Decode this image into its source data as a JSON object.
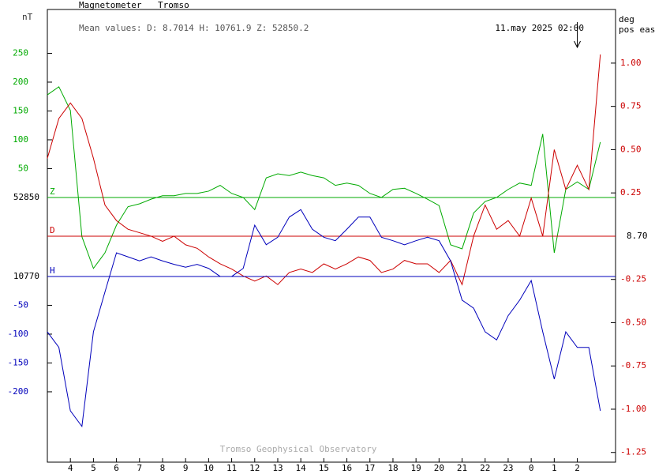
{
  "chart_data": {
    "type": "line",
    "title": "Magnetometer",
    "station": "Tromso",
    "mean_values": "Mean values:  D: 8.7014   H: 10761.9   Z: 52850.2",
    "y_label": "nT",
    "y2_label": [
      "deg",
      "pos east"
    ],
    "annotation": {
      "text": "11.may 2025 02:00",
      "x": 26
    },
    "footer": "Tromso Geophysical Observatory",
    "xlim": [
      3,
      27.66
    ],
    "xticks": [
      4,
      5,
      6,
      7,
      8,
      9,
      10,
      11,
      12,
      13,
      14,
      15,
      16,
      17,
      18,
      19,
      20,
      21,
      22,
      23,
      {
        "value": 24,
        "label": "0"
      },
      {
        "value": 25,
        "label": "1"
      },
      {
        "value": 26,
        "label": "2"
      }
    ],
    "ylim": [
      -459,
      326
    ],
    "yticks": [
      50,
      100,
      150,
      200,
      250
    ],
    "y2lim": [
      -1.306,
      1.31
    ],
    "y2ticks": [
      {
        "value": 1,
        "label": "1.00"
      },
      0.75,
      {
        "value": 0.5,
        "label": "0.50"
      },
      0.25,
      -0.25,
      {
        "value": -0.5,
        "label": "-0.50"
      },
      -0.75,
      {
        "value": -1,
        "label": "-1.00"
      },
      -1.25
    ],
    "y3lim": [
      -322,
      463
    ],
    "y3ticks": [
      -50,
      -100,
      -150,
      -200
    ],
    "x": [
      3,
      3.5,
      4,
      4.5,
      5,
      5.5,
      6,
      6.5,
      7,
      7.5,
      8,
      8.5,
      9,
      9.5,
      10,
      10.5,
      11,
      11.5,
      12,
      12.5,
      13,
      13.5,
      14,
      14.5,
      15,
      15.5,
      16,
      16.5,
      17,
      17.5,
      18,
      18.5,
      19,
      19.5,
      20,
      20.5,
      21,
      21.5,
      22,
      22.5,
      23,
      23.5,
      24,
      24.5,
      25,
      25.5,
      26,
      26.5,
      27
    ],
    "series": [
      {
        "name": "Z",
        "baseline_label": "52850",
        "color": "#00aa00",
        "axis": "y",
        "values": [
          178,
          192,
          151,
          -68,
          -123,
          -96,
          -48,
          -16,
          -11,
          -3,
          3,
          3,
          7,
          7,
          11,
          21,
          7,
          0,
          -21,
          34,
          41,
          38,
          44,
          38,
          34,
          21,
          25,
          21,
          7,
          0,
          14,
          16,
          7,
          -3,
          -14,
          -82,
          -89,
          -27,
          -7,
          0,
          14,
          25,
          21,
          110,
          -96,
          14,
          27,
          14,
          96
        ]
      },
      {
        "name": "D",
        "baseline_label": "8.70",
        "color": "#cc0000",
        "axis": "y2",
        "values": [
          0.45,
          0.68,
          0.77,
          0.68,
          0.45,
          0.18,
          0.09,
          0.04,
          0.02,
          0.0,
          -0.03,
          0.0,
          -0.05,
          -0.07,
          -0.12,
          -0.16,
          -0.19,
          -0.23,
          -0.26,
          -0.23,
          -0.28,
          -0.21,
          -0.19,
          -0.21,
          -0.16,
          -0.19,
          -0.16,
          -0.12,
          -0.14,
          -0.21,
          -0.19,
          -0.14,
          -0.16,
          -0.16,
          -0.21,
          -0.14,
          -0.28,
          0.0,
          0.18,
          0.04,
          0.09,
          0.0,
          0.22,
          0.0,
          0.5,
          0.27,
          0.41,
          0.27,
          1.05
        ]
      },
      {
        "name": "H",
        "baseline_label": "10770",
        "color": "#0000bb",
        "axis": "y3",
        "values": [
          -96,
          -123,
          -233,
          -260,
          -96,
          -27,
          41,
          34,
          27,
          34,
          27,
          21,
          16,
          21,
          14,
          0,
          0,
          14,
          89,
          55,
          68,
          103,
          116,
          82,
          68,
          62,
          82,
          103,
          103,
          68,
          62,
          55,
          62,
          68,
          62,
          27,
          -41,
          -55,
          -96,
          -110,
          -68,
          -41,
          -7,
          -96,
          -178,
          -96,
          -123,
          -123,
          -233
        ]
      }
    ]
  }
}
